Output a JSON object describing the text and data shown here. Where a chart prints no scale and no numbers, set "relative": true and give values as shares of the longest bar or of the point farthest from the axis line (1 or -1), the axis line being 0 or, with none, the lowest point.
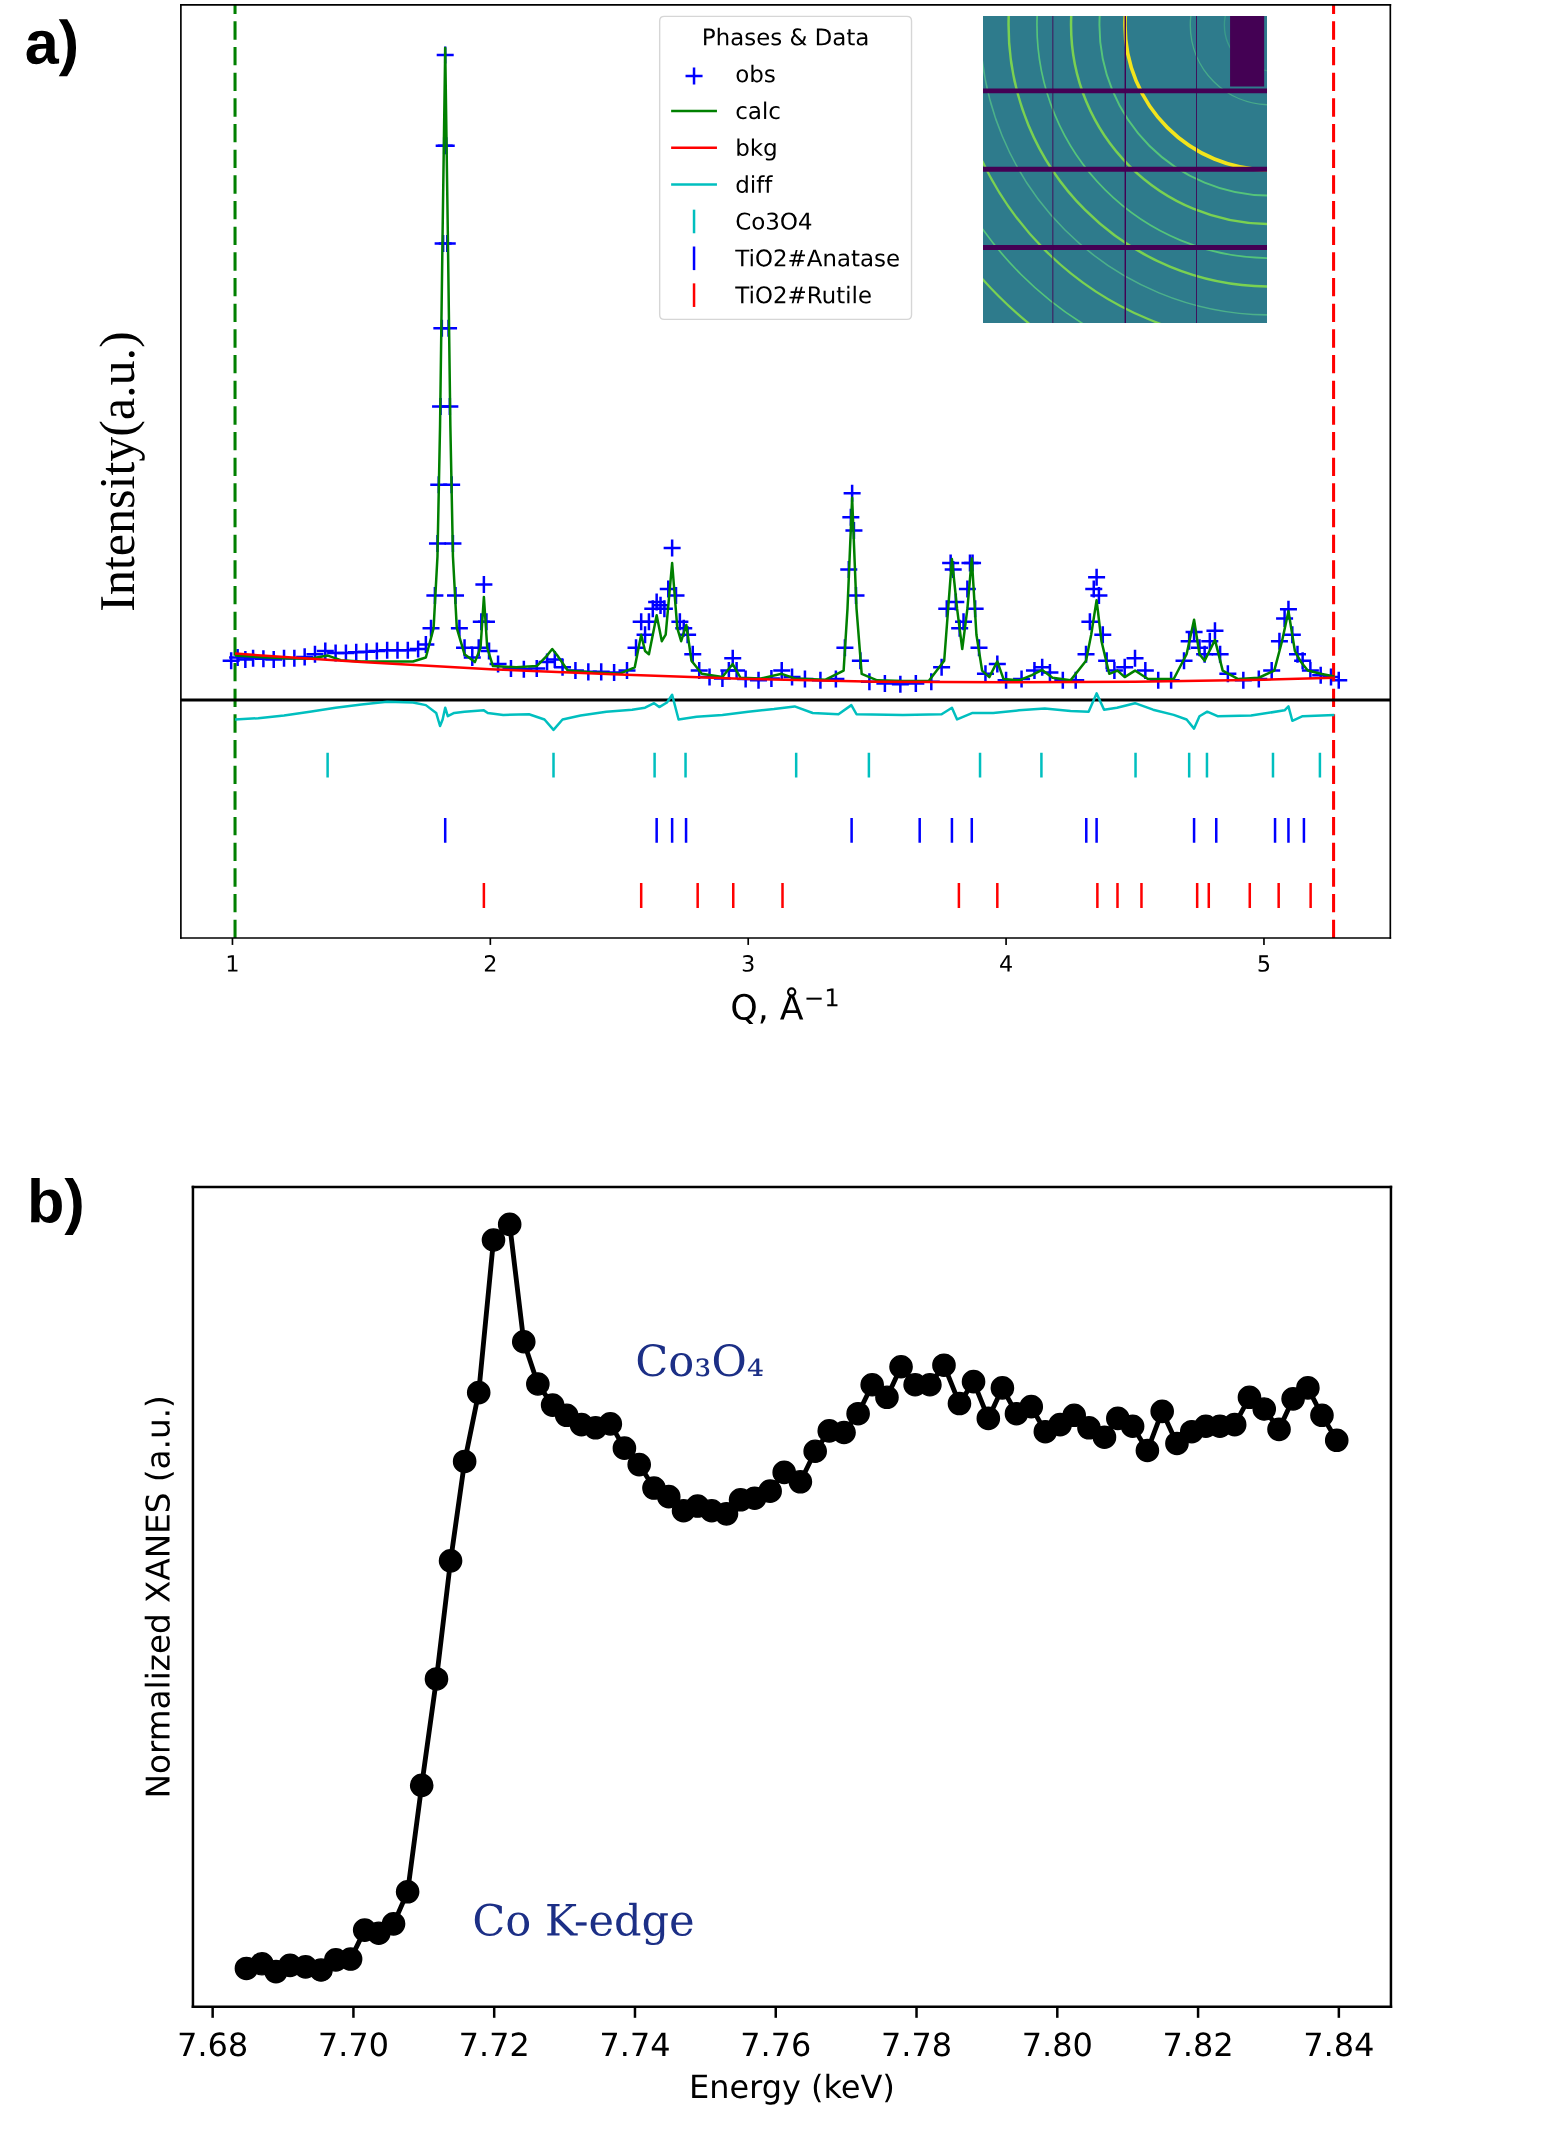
{
  "chart_data": [
    {
      "type": "line",
      "xlabel": "Q, Å$^{−1}$",
      "ylabel": "Intensity(a.u.)",
      "legend_title": "Phases & Data",
      "legend": "top",
      "relative": true,
      "xlim": [
        0.8,
        5.49
      ],
      "xticks": [
        1,
        2,
        3,
        4,
        5
      ],
      "annotations": [
        "a)"
      ],
      "ref_lines": [
        {
          "axis": "x",
          "value": 1.01,
          "color": "#008000",
          "line_style": "dashed"
        },
        {
          "axis": "x",
          "value": 5.27,
          "color": "#ff0000",
          "line_style": "dashed"
        },
        {
          "axis": "y",
          "value": 0,
          "color": "#000000"
        }
      ],
      "series": [
        {
          "name": "obs",
          "type": "scatter",
          "marker": "cross",
          "color": "#0000ff",
          "x": [
            0.995,
            1.02,
            1.05,
            1.08,
            1.12,
            1.16,
            1.2,
            1.24,
            1.28,
            1.32,
            1.36,
            1.4,
            1.44,
            1.48,
            1.52,
            1.56,
            1.6,
            1.64,
            1.68,
            1.72,
            1.75,
            1.77,
            1.785,
            1.795,
            1.8,
            1.807,
            1.812,
            1.817,
            1.821,
            1.825,
            1.829,
            1.833,
            1.838,
            1.843,
            1.85,
            1.855,
            1.865,
            1.88,
            1.9,
            1.93,
            1.955,
            1.965,
            1.975,
            1.985,
            1.995,
            2.03,
            2.08,
            2.13,
            2.18,
            2.22,
            2.25,
            2.28,
            2.33,
            2.38,
            2.43,
            2.48,
            2.53,
            2.565,
            2.585,
            2.6,
            2.615,
            2.63,
            2.645,
            2.66,
            2.675,
            2.69,
            2.705,
            2.72,
            2.735,
            2.75,
            2.765,
            2.785,
            2.81,
            2.85,
            2.9,
            2.925,
            2.94,
            2.955,
            2.99,
            3.04,
            3.09,
            3.13,
            3.17,
            3.22,
            3.28,
            3.34,
            3.375,
            3.39,
            3.398,
            3.403,
            3.41,
            3.418,
            3.435,
            3.47,
            3.53,
            3.59,
            3.65,
            3.71,
            3.75,
            3.77,
            3.785,
            3.795,
            3.805,
            3.82,
            3.835,
            3.85,
            3.86,
            3.87,
            3.88,
            3.895,
            3.92,
            3.966,
            4.0,
            4.06,
            4.11,
            4.14,
            4.17,
            4.22,
            4.27,
            4.31,
            4.325,
            4.34,
            4.351,
            4.36,
            4.375,
            4.39,
            4.42,
            4.46,
            4.5,
            4.54,
            4.59,
            4.64,
            4.69,
            4.71,
            4.729,
            4.75,
            4.77,
            4.79,
            4.81,
            4.83,
            4.86,
            4.92,
            4.98,
            5.03,
            5.06,
            5.08,
            5.095,
            5.11,
            5.13,
            5.15,
            5.18,
            5.22,
            5.26,
            5.29
          ],
          "values": [
            0.06,
            0.065,
            0.062,
            0.064,
            0.063,
            0.062,
            0.064,
            0.064,
            0.066,
            0.07,
            0.075,
            0.072,
            0.072,
            0.073,
            0.074,
            0.075,
            0.076,
            0.076,
            0.076,
            0.078,
            0.085,
            0.11,
            0.16,
            0.24,
            0.33,
            0.45,
            0.57,
            0.7,
            0.85,
            0.989,
            0.85,
            0.7,
            0.57,
            0.45,
            0.33,
            0.24,
            0.16,
            0.11,
            0.08,
            0.065,
            0.08,
            0.12,
            0.177,
            0.12,
            0.075,
            0.055,
            0.048,
            0.047,
            0.048,
            0.058,
            0.062,
            0.05,
            0.045,
            0.043,
            0.043,
            0.042,
            0.045,
            0.08,
            0.12,
            0.1,
            0.12,
            0.14,
            0.15,
            0.145,
            0.14,
            0.17,
            0.233,
            0.16,
            0.12,
            0.11,
            0.1,
            0.07,
            0.045,
            0.035,
            0.033,
            0.045,
            0.064,
            0.045,
            0.032,
            0.03,
            0.033,
            0.045,
            0.035,
            0.032,
            0.03,
            0.032,
            0.08,
            0.2,
            0.28,
            0.317,
            0.26,
            0.16,
            0.06,
            0.028,
            0.025,
            0.024,
            0.025,
            0.028,
            0.05,
            0.14,
            0.21,
            0.2,
            0.15,
            0.11,
            0.12,
            0.17,
            0.21,
            0.21,
            0.14,
            0.08,
            0.04,
            0.055,
            0.03,
            0.032,
            0.045,
            0.05,
            0.042,
            0.03,
            0.03,
            0.07,
            0.12,
            0.17,
            0.188,
            0.16,
            0.1,
            0.06,
            0.045,
            0.05,
            0.064,
            0.045,
            0.03,
            0.03,
            0.06,
            0.09,
            0.104,
            0.08,
            0.07,
            0.09,
            0.106,
            0.07,
            0.04,
            0.03,
            0.032,
            0.045,
            0.09,
            0.125,
            0.139,
            0.1,
            0.07,
            0.06,
            0.045,
            0.038,
            0.035,
            0.03
          ]
        },
        {
          "name": "calc",
          "type": "line",
          "color": "#008000",
          "x": [
            1.01,
            1.1,
            1.2,
            1.3,
            1.37,
            1.42,
            1.5,
            1.6,
            1.7,
            1.75,
            1.78,
            1.795,
            1.805,
            1.815,
            1.825,
            1.835,
            1.845,
            1.855,
            1.87,
            1.9,
            1.94,
            1.962,
            1.975,
            1.988,
            2.01,
            2.1,
            2.18,
            2.22,
            2.24,
            2.26,
            2.3,
            2.4,
            2.5,
            2.56,
            2.585,
            2.6,
            2.615,
            2.645,
            2.665,
            2.68,
            2.705,
            2.725,
            2.74,
            2.76,
            2.78,
            2.82,
            2.9,
            2.94,
            2.97,
            3.05,
            3.13,
            3.18,
            3.3,
            3.37,
            3.385,
            3.403,
            3.42,
            3.44,
            3.5,
            3.6,
            3.7,
            3.76,
            3.79,
            3.81,
            3.83,
            3.85,
            3.867,
            3.885,
            3.907,
            3.935,
            3.966,
            3.99,
            4.05,
            4.1,
            4.14,
            4.18,
            4.25,
            4.31,
            4.33,
            4.351,
            4.37,
            4.4,
            4.432,
            4.46,
            4.5,
            4.55,
            4.65,
            4.7,
            4.729,
            4.75,
            4.77,
            4.81,
            4.84,
            4.9,
            4.98,
            5.04,
            5.07,
            5.095,
            5.12,
            5.142,
            5.17,
            5.22,
            5.273
          ],
          "values": [
            0.068,
            0.066,
            0.064,
            0.063,
            0.068,
            0.061,
            0.059,
            0.059,
            0.059,
            0.065,
            0.11,
            0.22,
            0.42,
            0.72,
            1.0,
            0.72,
            0.42,
            0.22,
            0.11,
            0.07,
            0.058,
            0.08,
            0.158,
            0.08,
            0.052,
            0.05,
            0.052,
            0.068,
            0.078,
            0.068,
            0.045,
            0.042,
            0.04,
            0.05,
            0.1,
            0.075,
            0.07,
            0.13,
            0.09,
            0.1,
            0.21,
            0.11,
            0.09,
            0.115,
            0.06,
            0.04,
            0.035,
            0.055,
            0.034,
            0.033,
            0.04,
            0.033,
            0.031,
            0.045,
            0.14,
            0.31,
            0.14,
            0.04,
            0.03,
            0.029,
            0.029,
            0.06,
            0.216,
            0.14,
            0.078,
            0.14,
            0.217,
            0.1,
            0.045,
            0.035,
            0.059,
            0.032,
            0.03,
            0.038,
            0.046,
            0.034,
            0.03,
            0.06,
            0.1,
            0.153,
            0.09,
            0.04,
            0.045,
            0.035,
            0.045,
            0.032,
            0.032,
            0.07,
            0.123,
            0.07,
            0.06,
            0.092,
            0.045,
            0.032,
            0.034,
            0.045,
            0.09,
            0.136,
            0.075,
            0.059,
            0.045,
            0.04,
            0.036
          ]
        },
        {
          "name": "bkg",
          "type": "line",
          "color": "#ff0000",
          "x": [
            1.01,
            1.5,
            2.0,
            2.5,
            3.0,
            3.5,
            4.0,
            4.5,
            5.0,
            5.273
          ],
          "values": [
            0.071,
            0.058,
            0.047,
            0.039,
            0.032,
            0.028,
            0.027,
            0.028,
            0.031,
            0.034
          ]
        },
        {
          "name": "diff",
          "type": "line",
          "color": "#00bfbf",
          "x": [
            1.01,
            1.1,
            1.2,
            1.3,
            1.4,
            1.5,
            1.6,
            1.7,
            1.75,
            1.79,
            1.805,
            1.815,
            1.825,
            1.835,
            1.86,
            1.9,
            1.975,
            1.99,
            2.05,
            2.15,
            2.21,
            2.245,
            2.28,
            2.35,
            2.45,
            2.55,
            2.6,
            2.635,
            2.655,
            2.685,
            2.705,
            2.73,
            2.8,
            2.9,
            3.0,
            3.1,
            3.18,
            3.25,
            3.35,
            3.4,
            3.42,
            3.6,
            3.75,
            3.79,
            3.81,
            3.87,
            3.95,
            4.05,
            4.15,
            4.25,
            4.32,
            4.351,
            4.38,
            4.43,
            4.5,
            4.57,
            4.65,
            4.7,
            4.729,
            4.75,
            4.78,
            4.82,
            4.95,
            5.08,
            5.095,
            5.11,
            5.15,
            5.273
          ],
          "values": [
            -0.03,
            -0.028,
            -0.024,
            -0.018,
            -0.012,
            -0.007,
            -0.003,
            -0.004,
            -0.008,
            -0.02,
            -0.04,
            -0.03,
            -0.012,
            -0.025,
            -0.02,
            -0.018,
            -0.016,
            -0.02,
            -0.023,
            -0.022,
            -0.03,
            -0.046,
            -0.03,
            -0.024,
            -0.018,
            -0.015,
            -0.012,
            -0.005,
            -0.011,
            -0.004,
            0.008,
            -0.03,
            -0.026,
            -0.023,
            -0.018,
            -0.014,
            -0.01,
            -0.02,
            -0.022,
            -0.008,
            -0.022,
            -0.023,
            -0.022,
            -0.012,
            -0.03,
            -0.02,
            -0.02,
            -0.016,
            -0.013,
            -0.017,
            -0.018,
            0.01,
            -0.015,
            -0.012,
            -0.005,
            -0.015,
            -0.023,
            -0.03,
            -0.044,
            -0.025,
            -0.018,
            -0.025,
            -0.024,
            -0.016,
            -0.01,
            -0.032,
            -0.025,
            -0.023
          ]
        },
        {
          "name": "Co3O4",
          "type": "line",
          "color": "#00bfbf",
          "x": [
            1.369,
            1.369,
            null,
            2.245,
            2.245,
            null,
            2.637,
            2.637,
            null,
            2.757,
            2.757,
            null,
            3.186,
            3.186,
            null,
            3.468,
            3.468,
            null,
            3.899,
            3.899,
            null,
            4.137,
            4.137,
            null,
            4.502,
            4.502,
            null,
            4.71,
            4.71,
            null,
            4.779,
            4.779,
            null,
            5.035,
            5.035,
            null,
            5.217,
            5.217
          ],
          "values": [
            -0.119,
            -0.081,
            null,
            -0.119,
            -0.081,
            null,
            -0.119,
            -0.081,
            null,
            -0.119,
            -0.081,
            null,
            -0.119,
            -0.081,
            null,
            -0.119,
            -0.081,
            null,
            -0.119,
            -0.081,
            null,
            -0.119,
            -0.081,
            null,
            -0.119,
            -0.081,
            null,
            -0.119,
            -0.081,
            null,
            -0.119,
            -0.081,
            null,
            -0.119,
            -0.081,
            null,
            -0.119,
            -0.081
          ]
        },
        {
          "name": "TiO2#Anatase",
          "type": "line",
          "color": "#0000ff",
          "x": [
            1.825,
            1.825,
            null,
            2.645,
            2.645,
            null,
            2.705,
            2.705,
            null,
            2.759,
            2.759,
            null,
            3.401,
            3.401,
            null,
            3.665,
            3.665,
            null,
            3.79,
            3.79,
            null,
            3.867,
            3.867,
            null,
            4.311,
            4.311,
            null,
            4.351,
            4.351,
            null,
            4.729,
            4.729,
            null,
            4.815,
            4.815,
            null,
            5.043,
            5.043,
            null,
            5.095,
            5.095,
            null,
            5.155,
            5.155
          ],
          "values": [
            -0.219,
            -0.181,
            null,
            -0.219,
            -0.181,
            null,
            -0.219,
            -0.181,
            null,
            -0.219,
            -0.181,
            null,
            -0.219,
            -0.181,
            null,
            -0.219,
            -0.181,
            null,
            -0.219,
            -0.181,
            null,
            -0.219,
            -0.181,
            null,
            -0.219,
            -0.181,
            null,
            -0.219,
            -0.181,
            null,
            -0.219,
            -0.181,
            null,
            -0.219,
            -0.181,
            null,
            -0.219,
            -0.181,
            null,
            -0.219,
            -0.181,
            null,
            -0.219,
            -0.181
          ]
        },
        {
          "name": "TiO2#Rutile",
          "type": "line",
          "color": "#ff0000",
          "x": [
            1.975,
            1.975,
            null,
            2.585,
            2.585,
            null,
            2.804,
            2.804,
            null,
            2.942,
            2.942,
            null,
            3.133,
            3.133,
            null,
            3.817,
            3.817,
            null,
            3.966,
            3.966,
            null,
            4.354,
            4.354,
            null,
            4.432,
            4.432,
            null,
            4.525,
            4.525,
            null,
            4.741,
            4.741,
            null,
            4.786,
            4.786,
            null,
            4.945,
            4.945,
            null,
            5.057,
            5.057,
            null,
            5.181,
            5.181
          ],
          "values": [
            -0.319,
            -0.281,
            null,
            -0.319,
            -0.281,
            null,
            -0.319,
            -0.281,
            null,
            -0.319,
            -0.281,
            null,
            -0.319,
            -0.281,
            null,
            -0.319,
            -0.281,
            null,
            -0.319,
            -0.281,
            null,
            -0.319,
            -0.281,
            null,
            -0.319,
            -0.281,
            null,
            -0.319,
            -0.281,
            null,
            -0.319,
            -0.281,
            null,
            -0.319,
            -0.281,
            null,
            -0.319,
            -0.281,
            null,
            -0.319,
            -0.281,
            null,
            -0.319,
            -0.281
          ]
        }
      ]
    },
    {
      "type": "line",
      "xlabel": "Energy (keV)",
      "ylabel": "Normalized XANES (a.u.)",
      "relative": true,
      "marker": "circle",
      "color": "#000000",
      "xlim": [
        7.6772,
        7.8474
      ],
      "xticks": [
        7.68,
        {
          "value": 7.7,
          "label": "7.70"
        },
        7.72,
        7.74,
        7.76,
        7.78,
        {
          "value": 7.8,
          "label": "7.80"
        },
        7.82,
        7.84
      ],
      "annotations": [
        "b)",
        "Co₃O₄",
        "Co K-edge"
      ],
      "x": [
        7.6848,
        7.687,
        7.689,
        7.691,
        7.6932,
        7.6954,
        7.6975,
        7.6996,
        7.7016,
        7.7036,
        7.7057,
        7.7077,
        7.7097,
        7.7118,
        7.7138,
        7.7158,
        7.7178,
        7.7199,
        7.7222,
        7.7242,
        7.7262,
        7.7283,
        7.7303,
        7.7324,
        7.7344,
        7.7365,
        7.7385,
        7.7406,
        7.7427,
        7.7448,
        7.7469,
        7.7489,
        7.7509,
        7.753,
        7.755,
        7.757,
        7.7592,
        7.7612,
        7.7635,
        7.7656,
        7.7676,
        7.7697,
        7.7717,
        7.7737,
        7.7758,
        7.7778,
        7.7798,
        7.7819,
        7.7839,
        7.7861,
        7.7881,
        7.7902,
        7.7922,
        7.7942,
        7.7963,
        7.7983,
        7.8004,
        7.8024,
        7.8045,
        7.8067,
        7.8086,
        7.8107,
        7.8128,
        7.8149,
        7.817,
        7.8191,
        7.8211,
        7.8231,
        7.8252,
        7.8273,
        7.8294,
        7.8315,
        7.8335,
        7.8356,
        7.8376,
        7.8397
      ],
      "values": [
        0.049,
        0.055,
        0.045,
        0.053,
        0.051,
        0.047,
        0.06,
        0.061,
        0.098,
        0.094,
        0.106,
        0.147,
        0.283,
        0.419,
        0.57,
        0.697,
        0.785,
        0.98,
        1.0,
        0.85,
        0.796,
        0.769,
        0.756,
        0.744,
        0.74,
        0.745,
        0.714,
        0.693,
        0.663,
        0.652,
        0.634,
        0.64,
        0.634,
        0.63,
        0.648,
        0.65,
        0.659,
        0.683,
        0.671,
        0.71,
        0.736,
        0.734,
        0.758,
        0.795,
        0.779,
        0.818,
        0.795,
        0.795,
        0.82,
        0.771,
        0.799,
        0.752,
        0.791,
        0.758,
        0.767,
        0.735,
        0.744,
        0.756,
        0.74,
        0.728,
        0.752,
        0.742,
        0.711,
        0.761,
        0.72,
        0.735,
        0.742,
        0.742,
        0.744,
        0.779,
        0.764,
        0.738,
        0.777,
        0.791,
        0.756,
        0.724
      ]
    }
  ]
}
